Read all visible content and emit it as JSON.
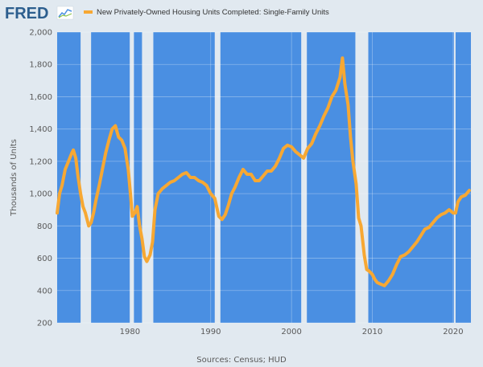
{
  "header": {
    "logo": "FRED",
    "logo_icon": "line-chart-icon",
    "legend_label": "New Privately-Owned Housing Units Completed: Single-Family Units"
  },
  "footer": {
    "sources": "Sources: Census; HUD"
  },
  "colors": {
    "plot_background": "#4a8fe2",
    "recession_band": "#e1e9f0",
    "series_line": "#f7a833",
    "page_background": "#e1e9f0",
    "text": "#595959"
  },
  "chart_data": {
    "type": "line",
    "title": "",
    "xlabel": "",
    "ylabel": "Thousands of Units",
    "xlim": [
      1971.0,
      2022.2
    ],
    "ylim": [
      200,
      2000
    ],
    "x_ticks": [
      1980,
      1990,
      2000,
      2010,
      2020
    ],
    "y_ticks": [
      200,
      400,
      600,
      800,
      1000,
      1200,
      1400,
      1600,
      1800,
      2000
    ],
    "y_tick_labels": [
      "200",
      "400",
      "600",
      "800",
      "1,000",
      "1,200",
      "1,400",
      "1,600",
      "1,800",
      "2,000"
    ],
    "grid": true,
    "legend": "top-left",
    "recessions": [
      [
        1973.9,
        1975.2
      ],
      [
        1980.0,
        1980.5
      ],
      [
        1981.5,
        1982.9
      ],
      [
        1990.5,
        1991.2
      ],
      [
        2001.2,
        2001.9
      ],
      [
        2007.9,
        2009.5
      ],
      [
        2020.1,
        2020.3
      ]
    ],
    "series": [
      {
        "name": "New Privately-Owned Housing Units Completed: Single-Family Units",
        "x": [
          1971.0,
          1971.3,
          1971.6,
          1972.0,
          1972.4,
          1972.8,
          1973.0,
          1973.3,
          1973.6,
          1973.9,
          1974.2,
          1974.5,
          1974.9,
          1975.2,
          1975.5,
          1975.8,
          1976.2,
          1976.6,
          1977.0,
          1977.4,
          1977.8,
          1978.2,
          1978.6,
          1979.0,
          1979.4,
          1979.8,
          1980.1,
          1980.3,
          1980.6,
          1980.9,
          1981.2,
          1981.5,
          1981.8,
          1982.1,
          1982.5,
          1982.8,
          1983.1,
          1983.5,
          1984.0,
          1984.5,
          1985.0,
          1985.5,
          1986.0,
          1986.5,
          1987.0,
          1987.5,
          1988.0,
          1988.5,
          1989.0,
          1989.5,
          1990.0,
          1990.5,
          1991.0,
          1991.4,
          1991.8,
          1992.2,
          1992.6,
          1993.0,
          1993.5,
          1994.0,
          1994.5,
          1995.0,
          1995.5,
          1996.0,
          1996.5,
          1997.0,
          1997.5,
          1998.0,
          1998.5,
          1999.0,
          1999.5,
          2000.0,
          2000.5,
          2001.0,
          2001.5,
          2002.0,
          2002.5,
          2003.0,
          2003.5,
          2004.0,
          2004.5,
          2005.0,
          2005.5,
          2006.0,
          2006.3,
          2006.6,
          2007.0,
          2007.3,
          2007.6,
          2008.0,
          2008.3,
          2008.6,
          2009.0,
          2009.3,
          2009.6,
          2010.0,
          2010.3,
          2010.6,
          2011.0,
          2011.5,
          2012.0,
          2012.5,
          2013.0,
          2013.5,
          2014.0,
          2014.5,
          2015.0,
          2015.5,
          2016.0,
          2016.5,
          2017.0,
          2017.5,
          2018.0,
          2018.5,
          2019.0,
          2019.5,
          2020.0,
          2020.3,
          2020.6,
          2021.0,
          2021.5,
          2022.0
        ],
        "values": [
          880,
          1000,
          1050,
          1150,
          1200,
          1250,
          1270,
          1220,
          1100,
          1000,
          920,
          880,
          800,
          820,
          880,
          960,
          1050,
          1150,
          1250,
          1330,
          1400,
          1420,
          1350,
          1330,
          1280,
          1150,
          980,
          860,
          880,
          920,
          800,
          720,
          610,
          580,
          620,
          700,
          900,
          1000,
          1030,
          1050,
          1070,
          1080,
          1100,
          1120,
          1130,
          1100,
          1100,
          1080,
          1070,
          1050,
          1000,
          970,
          860,
          840,
          870,
          930,
          1000,
          1040,
          1100,
          1150,
          1120,
          1120,
          1080,
          1080,
          1110,
          1140,
          1140,
          1170,
          1220,
          1280,
          1300,
          1290,
          1260,
          1240,
          1220,
          1280,
          1310,
          1370,
          1420,
          1480,
          1530,
          1600,
          1640,
          1720,
          1840,
          1680,
          1550,
          1350,
          1200,
          1060,
          850,
          800,
          620,
          530,
          520,
          500,
          470,
          450,
          440,
          430,
          460,
          500,
          560,
          610,
          620,
          640,
          670,
          700,
          740,
          780,
          790,
          820,
          850,
          870,
          880,
          900,
          880,
          880,
          950,
          980,
          990,
          1020
        ]
      }
    ]
  }
}
